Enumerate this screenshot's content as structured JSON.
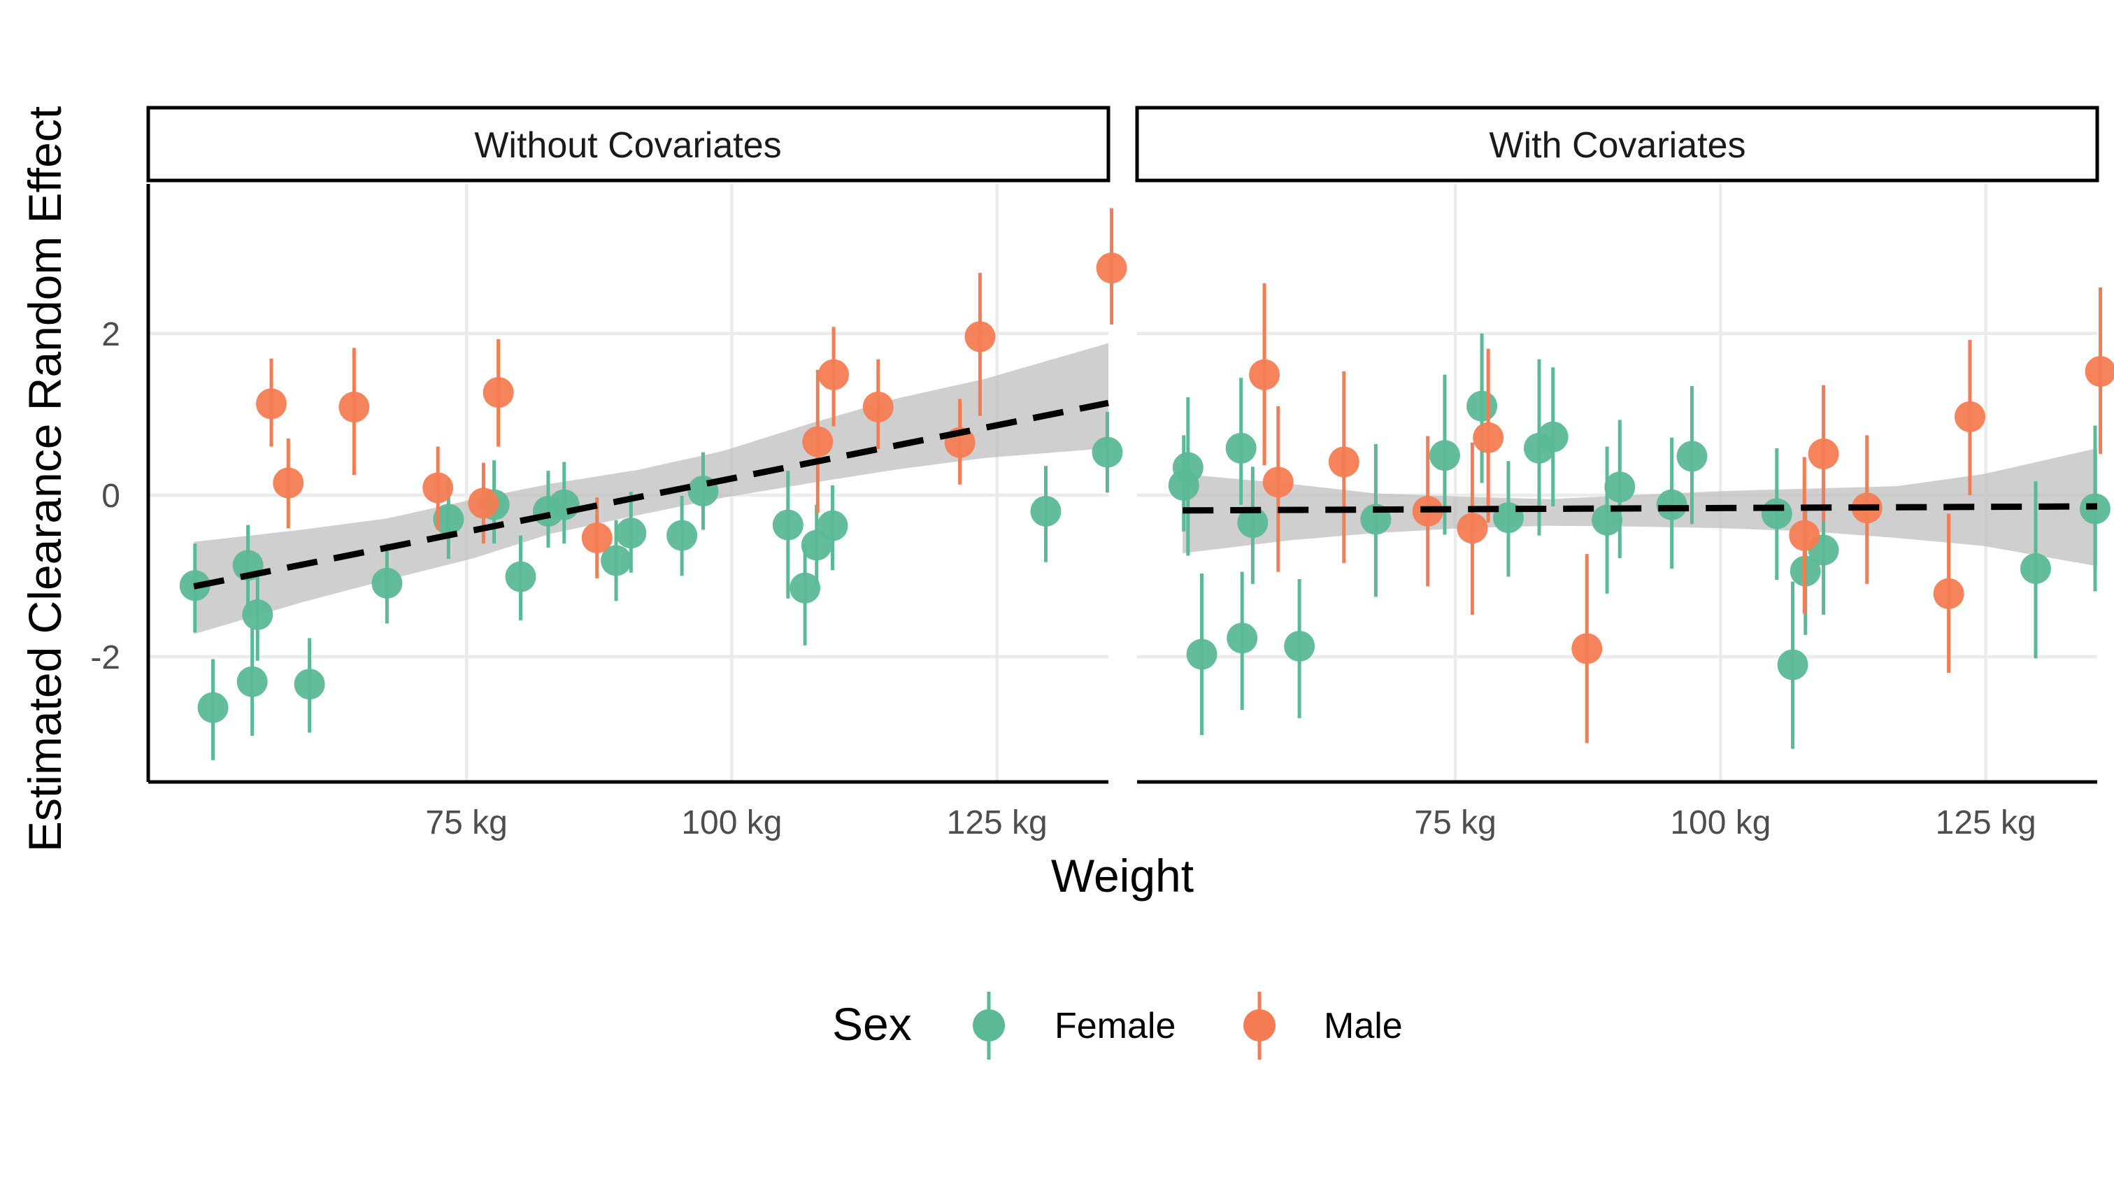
{
  "chart_data": {
    "type": "scatter",
    "ylabel": "Estimated Clearance Random Effect",
    "xlabel": "Weight",
    "xlim": [
      45,
      135.5
    ],
    "ylim": [
      -3.55,
      3.85
    ],
    "x_ticks": [
      {
        "value": 75,
        "label": "75 kg"
      },
      {
        "value": 100,
        "label": "100 kg"
      },
      {
        "value": 125,
        "label": "125 kg"
      }
    ],
    "y_ticks": [
      {
        "value": -2,
        "label": "-2"
      },
      {
        "value": 0,
        "label": "0"
      },
      {
        "value": 2,
        "label": "2"
      }
    ],
    "grid": true,
    "legend": {
      "title": "Sex",
      "position": "bottom",
      "entries": [
        {
          "name": "Female",
          "color": "#5BB996"
        },
        {
          "name": "Male",
          "color": "#F47C53"
        }
      ]
    },
    "colors": {
      "Female": "#5BB996",
      "Male": "#F47C53",
      "trend": "#000000",
      "ribbon": "#BDBDBD"
    },
    "panels": [
      {
        "title": "Without Covariates",
        "trend": {
          "x": [
            49.3,
            135.5
          ],
          "y": [
            -1.13,
            1.14
          ]
        },
        "ribbon": {
          "x": [
            49.3,
            59.4,
            67.5,
            75.7,
            82.9,
            91.1,
            99.3,
            107.5,
            115.7,
            123.9,
            135.5
          ],
          "lower": [
            -1.72,
            -1.33,
            -1.05,
            -0.78,
            -0.48,
            -0.25,
            -0.03,
            0.15,
            0.32,
            0.46,
            0.58
          ],
          "upper": [
            -0.58,
            -0.43,
            -0.29,
            -0.05,
            0.14,
            0.31,
            0.55,
            0.89,
            1.2,
            1.44,
            1.88
          ]
        },
        "points": [
          {
            "sex": "Female",
            "x": 49.4,
            "y": -1.12,
            "lo": -1.7,
            "hi": -0.6
          },
          {
            "sex": "Female",
            "x": 51.1,
            "y": -2.63,
            "lo": -3.28,
            "hi": -2.03
          },
          {
            "sex": "Female",
            "x": 54.4,
            "y": -0.87,
            "lo": -1.37,
            "hi": -0.37
          },
          {
            "sex": "Female",
            "x": 54.8,
            "y": -2.31,
            "lo": -2.98,
            "hi": -1.65
          },
          {
            "sex": "Female",
            "x": 55.3,
            "y": -1.48,
            "lo": -2.05,
            "hi": -0.93
          },
          {
            "sex": "Female",
            "x": 60.2,
            "y": -2.34,
            "lo": -2.94,
            "hi": -1.77
          },
          {
            "sex": "Female",
            "x": 67.5,
            "y": -1.09,
            "lo": -1.59,
            "hi": -0.6
          },
          {
            "sex": "Female",
            "x": 73.3,
            "y": -0.3,
            "lo": -0.79,
            "hi": 0.2
          },
          {
            "sex": "Female",
            "x": 77.6,
            "y": -0.12,
            "lo": -0.6,
            "hi": 0.43
          },
          {
            "sex": "Female",
            "x": 80.1,
            "y": -1.01,
            "lo": -1.55,
            "hi": -0.5
          },
          {
            "sex": "Female",
            "x": 82.7,
            "y": -0.2,
            "lo": -0.65,
            "hi": 0.3
          },
          {
            "sex": "Female",
            "x": 84.2,
            "y": -0.12,
            "lo": -0.6,
            "hi": 0.41
          },
          {
            "sex": "Female",
            "x": 89.1,
            "y": -0.81,
            "lo": -1.31,
            "hi": -0.31
          },
          {
            "sex": "Female",
            "x": 90.5,
            "y": -0.47,
            "lo": -0.96,
            "hi": 0.04
          },
          {
            "sex": "Female",
            "x": 95.3,
            "y": -0.5,
            "lo": -1.0,
            "hi": -0.01
          },
          {
            "sex": "Female",
            "x": 97.3,
            "y": 0.05,
            "lo": -0.43,
            "hi": 0.53
          },
          {
            "sex": "Female",
            "x": 105.3,
            "y": -0.37,
            "lo": -1.28,
            "hi": 0.3
          },
          {
            "sex": "Female",
            "x": 106.9,
            "y": -1.15,
            "lo": -1.86,
            "hi": -0.62
          },
          {
            "sex": "Female",
            "x": 108.0,
            "y": -0.62,
            "lo": -1.1,
            "hi": -0.12
          },
          {
            "sex": "Female",
            "x": 109.5,
            "y": -0.38,
            "lo": -0.93,
            "hi": 0.12
          },
          {
            "sex": "Female",
            "x": 129.6,
            "y": -0.2,
            "lo": -0.83,
            "hi": 0.36
          },
          {
            "sex": "Female",
            "x": 135.4,
            "y": 0.53,
            "lo": 0.03,
            "hi": 1.03
          },
          {
            "sex": "Male",
            "x": 56.6,
            "y": 1.13,
            "lo": 0.6,
            "hi": 1.69
          },
          {
            "sex": "Male",
            "x": 58.2,
            "y": 0.15,
            "lo": -0.41,
            "hi": 0.7
          },
          {
            "sex": "Male",
            "x": 64.4,
            "y": 1.09,
            "lo": 0.25,
            "hi": 1.82
          },
          {
            "sex": "Male",
            "x": 72.3,
            "y": 0.09,
            "lo": -0.43,
            "hi": 0.6
          },
          {
            "sex": "Male",
            "x": 76.6,
            "y": -0.1,
            "lo": -0.6,
            "hi": 0.4
          },
          {
            "sex": "Male",
            "x": 78.0,
            "y": 1.27,
            "lo": 0.6,
            "hi": 1.93
          },
          {
            "sex": "Male",
            "x": 87.3,
            "y": -0.53,
            "lo": -1.03,
            "hi": -0.03
          },
          {
            "sex": "Male",
            "x": 108.1,
            "y": 0.66,
            "lo": -0.22,
            "hi": 1.55
          },
          {
            "sex": "Male",
            "x": 109.6,
            "y": 1.49,
            "lo": 0.85,
            "hi": 2.08
          },
          {
            "sex": "Male",
            "x": 113.8,
            "y": 1.09,
            "lo": 0.57,
            "hi": 1.68
          },
          {
            "sex": "Male",
            "x": 121.5,
            "y": 0.65,
            "lo": 0.13,
            "hi": 1.19
          },
          {
            "sex": "Male",
            "x": 123.4,
            "y": 1.96,
            "lo": 0.98,
            "hi": 2.75
          },
          {
            "sex": "Male",
            "x": 135.8,
            "y": 2.81,
            "lo": 2.11,
            "hi": 3.55
          }
        ]
      },
      {
        "title": "With Covariates",
        "trend": {
          "x": [
            49.3,
            135.5
          ],
          "y": [
            -0.19,
            -0.14
          ]
        },
        "ribbon": {
          "x": [
            49.3,
            59.4,
            67.5,
            75.7,
            83.8,
            92.0,
            100.2,
            108.4,
            116.6,
            124.8,
            135.5
          ],
          "lower": [
            -0.72,
            -0.56,
            -0.47,
            -0.41,
            -0.38,
            -0.39,
            -0.41,
            -0.45,
            -0.53,
            -0.63,
            -0.88
          ],
          "upper": [
            0.26,
            0.14,
            0.02,
            -0.02,
            -0.05,
            0.0,
            0.05,
            0.08,
            0.11,
            0.26,
            0.58
          ]
        },
        "points": [
          {
            "sex": "Female",
            "x": 49.4,
            "y": 0.12,
            "lo": -0.45,
            "hi": 0.74
          },
          {
            "sex": "Female",
            "x": 49.8,
            "y": 0.34,
            "lo": -0.75,
            "hi": 1.21
          },
          {
            "sex": "Female",
            "x": 51.1,
            "y": -1.97,
            "lo": -2.97,
            "hi": -0.97
          },
          {
            "sex": "Female",
            "x": 54.8,
            "y": 0.58,
            "lo": -0.12,
            "hi": 1.45
          },
          {
            "sex": "Female",
            "x": 54.9,
            "y": -1.77,
            "lo": -2.66,
            "hi": -0.95
          },
          {
            "sex": "Female",
            "x": 55.9,
            "y": -0.34,
            "lo": -1.1,
            "hi": 0.35
          },
          {
            "sex": "Female",
            "x": 60.3,
            "y": -1.87,
            "lo": -2.76,
            "hi": -1.04
          },
          {
            "sex": "Female",
            "x": 67.5,
            "y": -0.3,
            "lo": -1.26,
            "hi": 0.63
          },
          {
            "sex": "Female",
            "x": 74.0,
            "y": 0.49,
            "lo": -0.49,
            "hi": 1.49
          },
          {
            "sex": "Female",
            "x": 77.5,
            "y": 1.1,
            "lo": 0.15,
            "hi": 2.0
          },
          {
            "sex": "Female",
            "x": 80.0,
            "y": -0.28,
            "lo": -1.01,
            "hi": 0.42
          },
          {
            "sex": "Female",
            "x": 82.9,
            "y": 0.58,
            "lo": -0.5,
            "hi": 1.68
          },
          {
            "sex": "Female",
            "x": 84.2,
            "y": 0.72,
            "lo": -0.14,
            "hi": 1.58
          },
          {
            "sex": "Female",
            "x": 89.3,
            "y": -0.31,
            "lo": -1.22,
            "hi": 0.6
          },
          {
            "sex": "Female",
            "x": 90.5,
            "y": 0.1,
            "lo": -0.78,
            "hi": 0.93
          },
          {
            "sex": "Female",
            "x": 95.4,
            "y": -0.12,
            "lo": -0.91,
            "hi": 0.71
          },
          {
            "sex": "Female",
            "x": 97.3,
            "y": 0.48,
            "lo": -0.36,
            "hi": 1.35
          },
          {
            "sex": "Female",
            "x": 105.3,
            "y": -0.23,
            "lo": -1.05,
            "hi": 0.58
          },
          {
            "sex": "Female",
            "x": 106.8,
            "y": -2.1,
            "lo": -3.14,
            "hi": -1.07
          },
          {
            "sex": "Female",
            "x": 108.0,
            "y": -0.94,
            "lo": -1.73,
            "hi": -0.15
          },
          {
            "sex": "Female",
            "x": 109.7,
            "y": -0.68,
            "lo": -1.48,
            "hi": 0.16
          },
          {
            "sex": "Female",
            "x": 129.7,
            "y": -0.91,
            "lo": -2.02,
            "hi": 0.17
          },
          {
            "sex": "Female",
            "x": 135.3,
            "y": -0.17,
            "lo": -1.19,
            "hi": 0.86
          },
          {
            "sex": "Male",
            "x": 57.0,
            "y": 1.49,
            "lo": 0.37,
            "hi": 2.62
          },
          {
            "sex": "Male",
            "x": 58.3,
            "y": 0.16,
            "lo": -0.95,
            "hi": 1.1
          },
          {
            "sex": "Male",
            "x": 64.5,
            "y": 0.41,
            "lo": -0.84,
            "hi": 1.53
          },
          {
            "sex": "Male",
            "x": 72.4,
            "y": -0.2,
            "lo": -1.13,
            "hi": 0.73
          },
          {
            "sex": "Male",
            "x": 76.6,
            "y": -0.41,
            "lo": -1.48,
            "hi": 0.65
          },
          {
            "sex": "Male",
            "x": 78.1,
            "y": 0.71,
            "lo": -0.34,
            "hi": 1.81
          },
          {
            "sex": "Male",
            "x": 87.4,
            "y": -1.9,
            "lo": -3.07,
            "hi": -0.73
          },
          {
            "sex": "Male",
            "x": 107.9,
            "y": -0.5,
            "lo": -1.47,
            "hi": 0.47
          },
          {
            "sex": "Male",
            "x": 109.7,
            "y": 0.51,
            "lo": -0.32,
            "hi": 1.36
          },
          {
            "sex": "Male",
            "x": 113.8,
            "y": -0.16,
            "lo": -1.1,
            "hi": 0.74
          },
          {
            "sex": "Male",
            "x": 121.5,
            "y": -1.22,
            "lo": -2.2,
            "hi": -0.23
          },
          {
            "sex": "Male",
            "x": 123.5,
            "y": 0.97,
            "lo": 0.0,
            "hi": 1.92
          },
          {
            "sex": "Male",
            "x": 135.8,
            "y": 1.53,
            "lo": 0.51,
            "hi": 2.57
          }
        ]
      }
    ]
  }
}
